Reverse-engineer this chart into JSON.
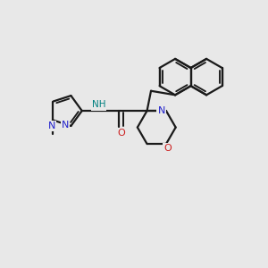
{
  "bg_color": "#e8e8e8",
  "bond_color": "#1a1a1a",
  "N_color": "#2020cc",
  "O_color": "#cc2020",
  "NH_color": "#008080",
  "line_width": 1.6,
  "figsize": [
    3.0,
    3.0
  ],
  "dpi": 100,
  "xlim": [
    0,
    10
  ],
  "ylim": [
    0,
    10
  ]
}
